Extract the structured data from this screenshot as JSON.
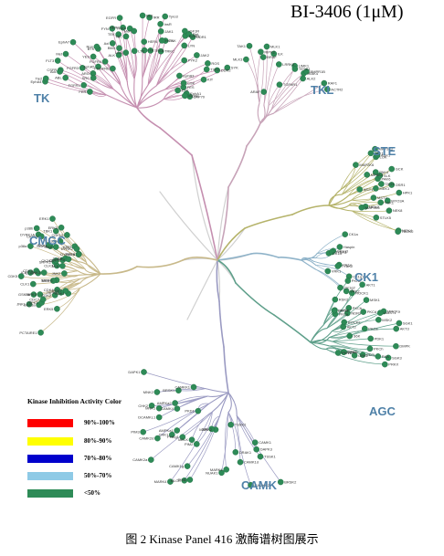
{
  "title": "BI-3406 (1μM)",
  "caption": "图 2   Kinase Panel 416 激酶谱树图展示",
  "groups": [
    {
      "id": "tk",
      "label": "TK",
      "color": "#c58fb0"
    },
    {
      "id": "tkl",
      "label": "TKL",
      "color": "#c7a3b8"
    },
    {
      "id": "ste",
      "label": "STE",
      "color": "#b5b36a"
    },
    {
      "id": "ck1",
      "label": "CK1",
      "color": "#8fb3c9"
    },
    {
      "id": "agc",
      "label": "AGC",
      "color": "#5e9f8a"
    },
    {
      "id": "camk",
      "label": "CAMK",
      "color": "#9a9ac2"
    },
    {
      "id": "cmgc",
      "label": "CMGC",
      "color": "#c8b98a"
    }
  ],
  "leaf_labels": {
    "tk": [
      "FGFR1",
      "FGFR3",
      "FGFR4",
      "TEK",
      "TRKA",
      "TRKB",
      "TRKC",
      "EphB1",
      "EphB3",
      "EphA1",
      "EphA4",
      "EphA7",
      "EphA5",
      "ALK",
      "LTK",
      "IRR",
      "InsR",
      "IGF1R",
      "ROS",
      "KIT",
      "CSFR",
      "FLT3",
      "PDGFRb",
      "EGFR",
      "HER2",
      "HER4",
      "FAK",
      "PYK2",
      "SYK",
      "ZAP70",
      "ABL",
      "ARG",
      "BTK",
      "BMX",
      "TEC",
      "ITK",
      "JAK1",
      "JAK2",
      "TYK2",
      "FES",
      "FER",
      "SRC",
      "YES",
      "FYN",
      "LCK",
      "BLK",
      "HCK",
      "LYN",
      "CSK",
      "CTK",
      "Tie2",
      "Met",
      "Ron",
      "Axl",
      "Mer",
      "Tyro3",
      "Ret",
      "DDR1",
      "DDR2",
      "MUSK",
      "Ack"
    ],
    "tkl": [
      "MLK3",
      "MLK1",
      "LRRK2",
      "IRAK4",
      "RAF1",
      "BRAF",
      "ARAF",
      "TGFbR1",
      "BMPR1B",
      "ALK2",
      "RIPK2",
      "ILK",
      "LIMK1",
      "TESK1",
      "ACTR2",
      "TAK1"
    ],
    "ste": [
      "PAK1",
      "PAK4",
      "PAK6",
      "MEK1",
      "MEK2",
      "MEK4",
      "MAP2K6",
      "MAP3K2",
      "MST1",
      "MST2",
      "YSK1",
      "TAOK2",
      "LOK",
      "SLK",
      "GCK",
      "HPK1",
      "MAP4K5",
      "NEK8",
      "ASK1",
      "MEKK3",
      "TAO1",
      "OSR1",
      "MYO3A",
      "STLK5"
    ],
    "ck1": [
      "CK1a",
      "CK1d",
      "CK1e",
      "CK1g1",
      "CK1g2",
      "CK1g3",
      "TTBK1",
      "TTBK2",
      "VRK1",
      "VRK2",
      "Haspin"
    ],
    "agc": [
      "PKCa",
      "PKCb",
      "PKCd",
      "PKCe",
      "PKCh",
      "PKCi",
      "PKN1",
      "PKN2",
      "AKT1",
      "AKT2",
      "AKT3",
      "SGK1",
      "SGK3",
      "RSK1",
      "RSK2",
      "MSK1",
      "MSK2",
      "S6K",
      "PDK1",
      "PKA",
      "PRKX",
      "PKG1",
      "ROCK1",
      "ROCK2",
      "MRCKa",
      "DMPK",
      "GRK2",
      "GRK5",
      "LATS2",
      "NDR2",
      "MAST1"
    ],
    "camk": [
      "CAMK1",
      "CAMK1d",
      "CAMK1g",
      "CAMK2a",
      "CAMK2d",
      "CAMK4",
      "CAMKK1",
      "CAMKK2",
      "MARK1",
      "MARK2",
      "MARK4",
      "AMPKa1",
      "AMPKa2",
      "BRSK1",
      "BRSK2",
      "NUAK1",
      "SIK",
      "MELK",
      "CHK1",
      "CHK2",
      "DAPK1",
      "DAPK3",
      "DRAK1",
      "PIM1",
      "PIM2",
      "PIM3",
      "MNK1",
      "MNK2",
      "TSSK1",
      "TSSK2",
      "MLCK",
      "PHKg1",
      "PKD1",
      "DCAMKL1"
    ],
    "cmgc": [
      "CDK1",
      "CDK2",
      "CDK4",
      "CDK5",
      "CDK6",
      "CDK7",
      "CDK9",
      "ERK1",
      "ERK2",
      "ERK5",
      "ERK7",
      "JNK1",
      "JNK2",
      "JNK3",
      "p38a",
      "p38b",
      "p38g",
      "p38d",
      "GSK3a",
      "GSK3b",
      "CLK1",
      "CLK2",
      "CLK3",
      "CLK4",
      "DYRK1A",
      "DYRK1B",
      "DYRK2",
      "HIPK1",
      "HIPK2",
      "HIPK3",
      "SRPK1",
      "SRPK2",
      "CK2a1",
      "CK2a2",
      "PRP4",
      "CDKL5",
      "PCTAIRE1",
      "CDC7",
      "MAK",
      "ICK",
      "NLK",
      "IKKa",
      "IKKb",
      "IKKe",
      "TBK1"
    ]
  },
  "legend": {
    "title": "Kinase Inhibition Activity Color",
    "items": [
      {
        "label": "90%-100%",
        "color": "#ff0000"
      },
      {
        "label": "80%-90%",
        "color": "#ffff00"
      },
      {
        "label": "70%-80%",
        "color": "#0000cc"
      },
      {
        "label": "50%-70%",
        "color": "#8ecae6"
      },
      {
        "label": "<50%",
        "color": "#2e8b57"
      }
    ]
  }
}
